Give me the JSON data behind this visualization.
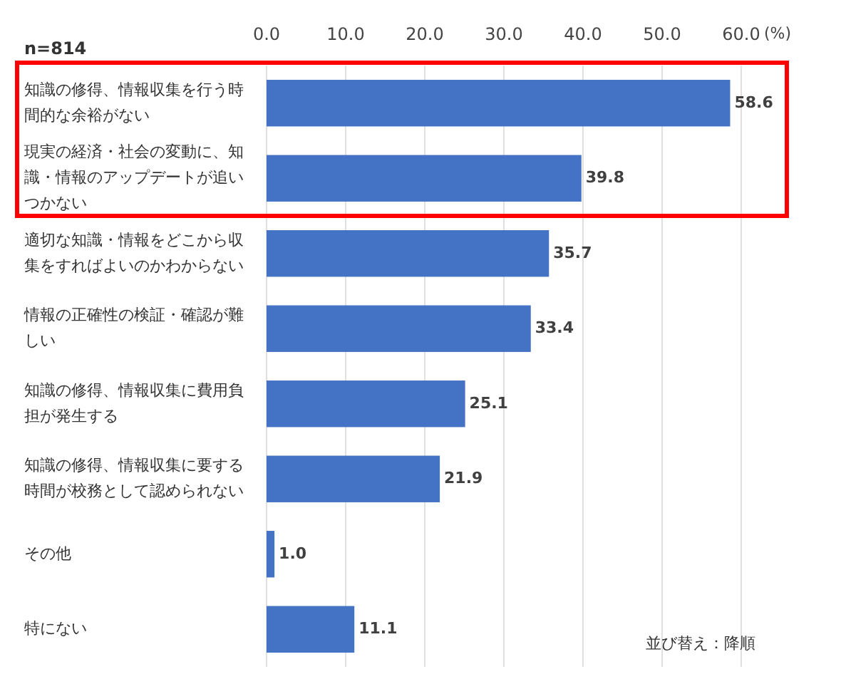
{
  "chart_data": {
    "type": "bar",
    "orientation": "horizontal",
    "categories": [
      "知識の修得、情報収集を行う時間的な余裕がない",
      "現実の経済・社会の変動に、知識・情報のアップデートが追いつかない",
      "適切な知識・情報をどこから収集をすればよいのかわからない",
      "情報の正確性の検証・確認が難しい",
      "知識の修得、情報収集に費用負担が発生する",
      "知識の修得、情報収集に要する時間が校務として認められない",
      "その他",
      "特にない"
    ],
    "values": [
      58.6,
      39.8,
      35.7,
      33.4,
      25.1,
      21.9,
      1.0,
      11.1
    ],
    "color": "#4472c4",
    "xlim": [
      0,
      60
    ],
    "xticks": [
      {
        "value": 0,
        "label": "0.0"
      },
      {
        "value": 10,
        "label": "10.0"
      },
      {
        "value": 20,
        "label": "20.0"
      },
      {
        "value": 30,
        "label": "30.0"
      },
      {
        "value": 40,
        "label": "40.0"
      },
      {
        "value": 50,
        "label": "50.0"
      },
      {
        "value": 60,
        "label": "60.0"
      }
    ],
    "xlabel": "(%)",
    "grid": "x",
    "value_labels": [
      "58.6",
      "39.8",
      "35.7",
      "33.4",
      "25.1",
      "21.9",
      "1.0",
      "11.1"
    ],
    "annotations": [
      "n=814",
      "並び替え：降順"
    ]
  }
}
